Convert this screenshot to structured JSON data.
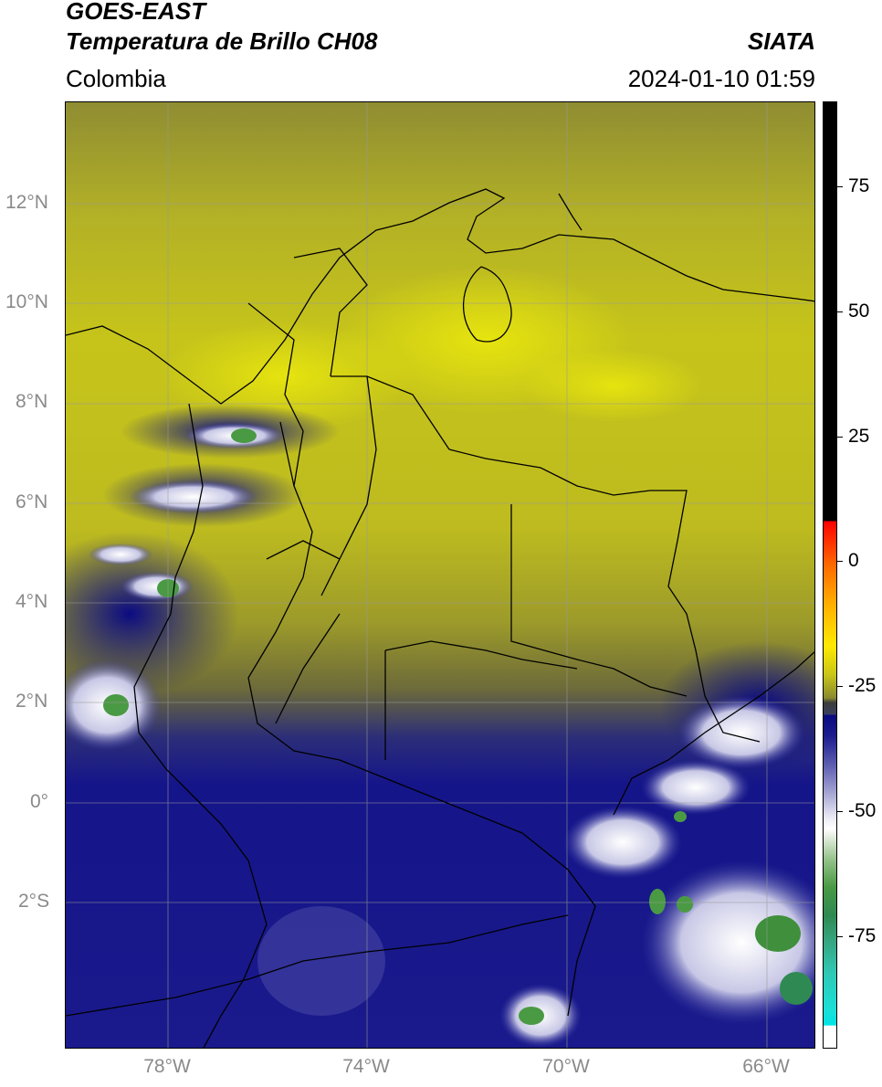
{
  "header": {
    "satellite": "GOES-EAST",
    "product": "Temperatura de Brillo CH08",
    "brand": "SIATA",
    "region": "Colombia",
    "timestamp": "2024-01-10 01:59"
  },
  "map": {
    "lat_labels": [
      "12°N",
      "10°N",
      "8°N",
      "6°N",
      "4°N",
      "2°N",
      "0°",
      "2°S"
    ],
    "lon_labels": [
      "78°W",
      "74°W",
      "70°W",
      "66°W"
    ]
  },
  "colorbar": {
    "ticks": [
      "75",
      "50",
      "25",
      "0",
      "-25",
      "-50",
      "-75"
    ],
    "colors": {
      "warm_black": "#000000",
      "red": "#ff0000",
      "yellow": "#ffea00",
      "olive": "#c9c618",
      "navy": "#0a0a80",
      "white": "#ffffff",
      "green": "#4a9a44",
      "cyan": "#00e4e4"
    }
  }
}
